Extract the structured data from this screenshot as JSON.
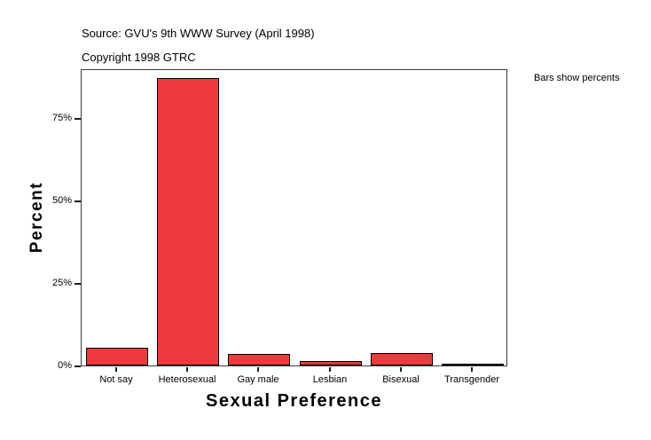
{
  "header": {
    "source_line": "Source: GVU's 9th WWW Survey (April 1998)",
    "copyright_line": "Copyright 1998 GTRC"
  },
  "chart_data": {
    "type": "bar",
    "title": "",
    "categories": [
      "Not say",
      "Heterosexual",
      "Gay male",
      "Lesbian",
      "Bisexual",
      "Transgender"
    ],
    "values": [
      5.5,
      87,
      3.4,
      1.3,
      3.7,
      0.4
    ],
    "xlabel": "Sexual Preference",
    "ylabel": "Percent",
    "ylim": [
      0,
      90
    ],
    "yticks": [
      0,
      25,
      50,
      75
    ],
    "ytick_suffix": "%",
    "grid": false,
    "legend_position": "none",
    "annotation": "Bars show percents",
    "bar_color": "#ED3B3D",
    "bar_border_color": "#000000",
    "axis_color": "#3A3A3A"
  }
}
